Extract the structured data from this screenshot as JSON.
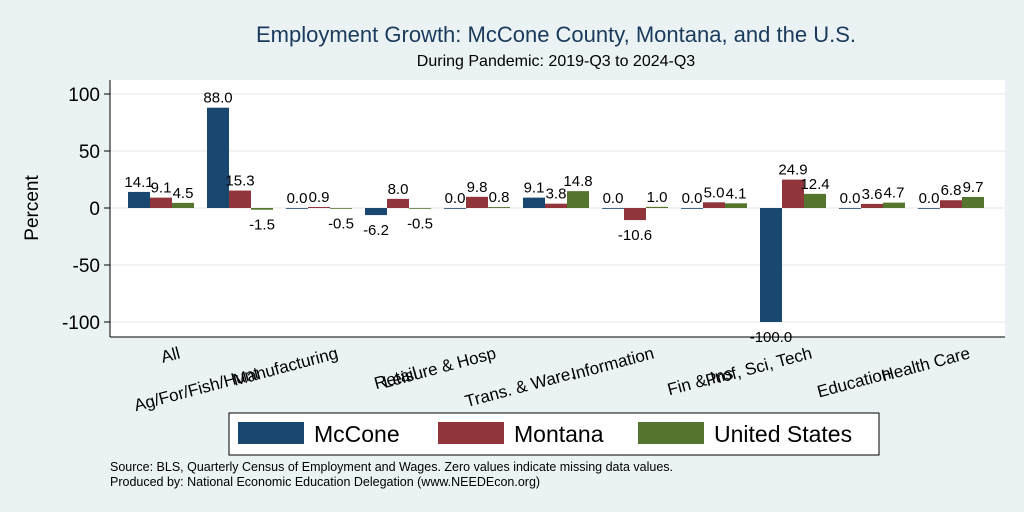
{
  "chart_data": {
    "type": "bar",
    "title": "Employment Growth: McCone County, Montana, and the U.S.",
    "subtitle": "During Pandemic: 2019-Q3 to 2024-Q3",
    "ylabel": "Percent",
    "xlabel": "",
    "ylim": [
      -110,
      115
    ],
    "yticks": [
      -100,
      -50,
      0,
      50,
      100
    ],
    "grid": true,
    "legend_position": "bottom",
    "categories": [
      "All",
      "Ag/For/Fish/Hunt",
      "Manufacturing",
      "Retail",
      "Leisure & Hosp",
      "Trans. & Ware.",
      "Information",
      "Fin & Ins",
      "Prof, Sci, Tech",
      "Education",
      "Health Care"
    ],
    "series": [
      {
        "name": "McCone",
        "color": "#1a476f",
        "values": [
          14.1,
          88.0,
          0.0,
          -6.2,
          0.0,
          9.1,
          0.0,
          0.0,
          -100.0,
          0.0,
          0.0
        ]
      },
      {
        "name": "Montana",
        "color": "#90353b",
        "values": [
          9.1,
          15.3,
          0.9,
          8.0,
          9.8,
          3.8,
          -10.6,
          5.0,
          24.9,
          3.6,
          6.8
        ]
      },
      {
        "name": "United States",
        "color": "#55752f",
        "values": [
          4.5,
          -1.5,
          -0.5,
          -0.5,
          0.8,
          14.8,
          1.0,
          4.1,
          12.4,
          4.7,
          9.7
        ]
      }
    ]
  },
  "footer": {
    "source": "Source: BLS, Quarterly Census of Employment and Wages. Zero values indicate missing data values.",
    "produced": "Produced by: National Economic Education Delegation (www.NEEDEcon.org)"
  }
}
